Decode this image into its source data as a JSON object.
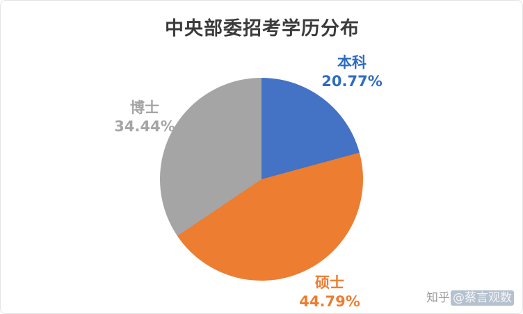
{
  "chart_data": {
    "type": "pie",
    "title": "中央部委招考学历分布",
    "categories": [
      "本科",
      "硕士",
      "博士"
    ],
    "values": [
      20.77,
      44.79,
      34.44
    ],
    "colors": [
      "#4472c4",
      "#ed7d31",
      "#a5a5a5"
    ],
    "start_angle_deg": 0,
    "direction": "clockwise",
    "legend": "none",
    "labels": [
      {
        "name": "本科",
        "pct": "20.77%",
        "color": "#2e6cc0"
      },
      {
        "name": "硕士",
        "pct": "44.79%",
        "color": "#ed7d31"
      },
      {
        "name": "博士",
        "pct": "34.44%",
        "color": "#a5a5a5"
      }
    ]
  },
  "watermark": {
    "prefix": "知乎",
    "account": "@蔡言观数"
  }
}
